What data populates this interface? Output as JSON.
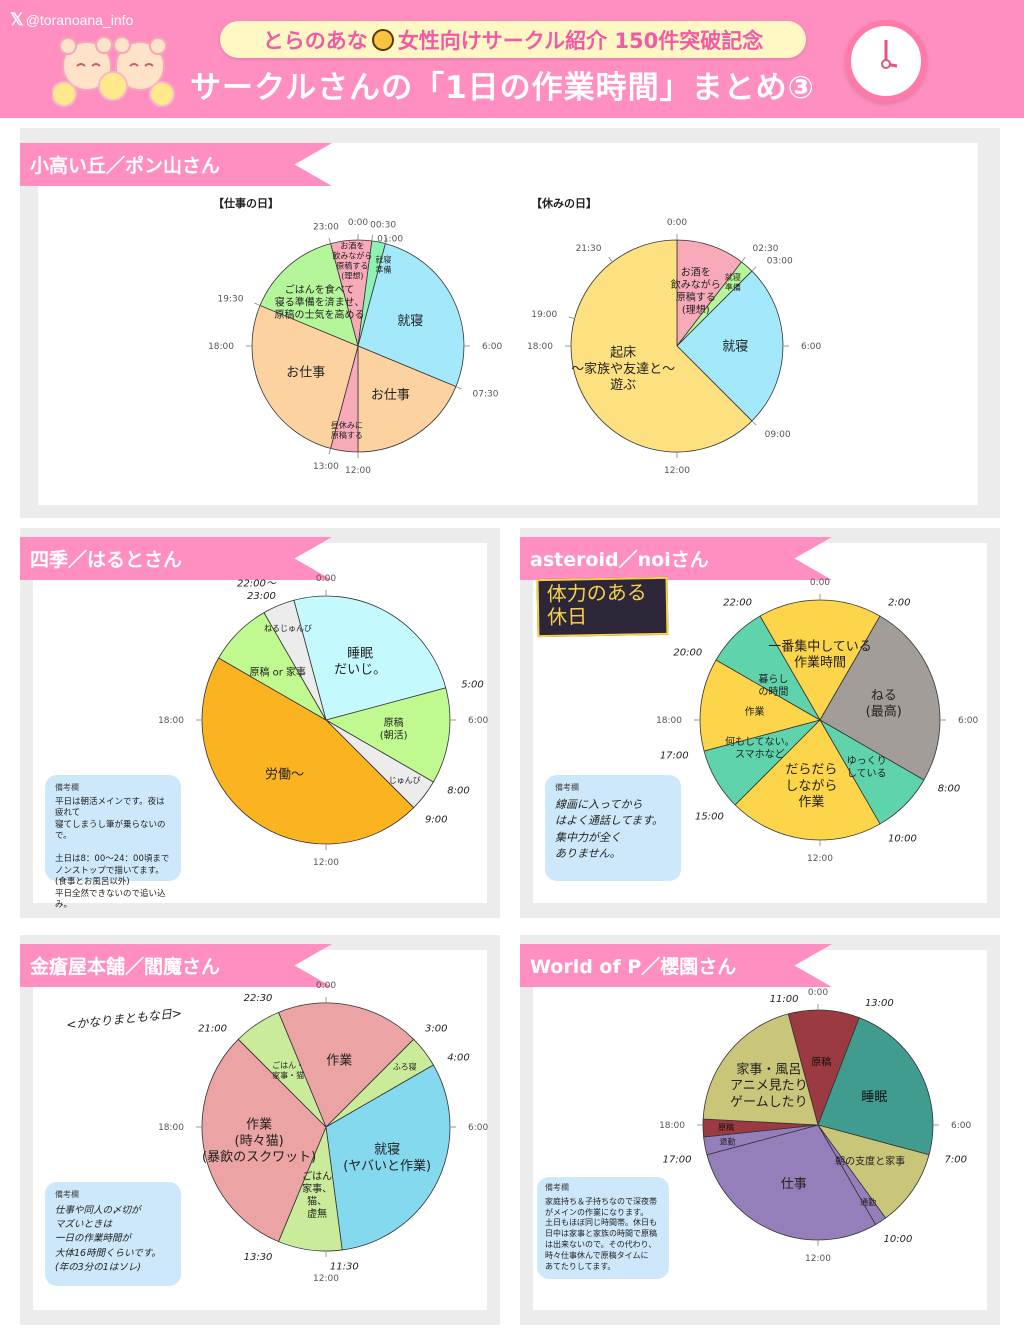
{
  "header": {
    "handle": "@toranoana_info",
    "banner_pre": "とらのあな",
    "banner_post": "女性向けサークル紹介 150件突破記念",
    "title": "サークルさんの「1日の作業時間」まとめ③"
  },
  "sections": [
    {
      "title": "小高い丘／ポン山さん",
      "subtitles": [
        "【仕事の日】",
        "【休みの日】"
      ]
    },
    {
      "title": "四季／はるとさん",
      "note_head": "備考欄",
      "note": "平日は朝活メインです。夜は疲れて\n寝てしまうし筆が乗らないので。\n\n土日は8：00〜24：00頃まで\nノンストップで描いてます。\n(食事とお風呂以外)\n平日全然できないので追い込み。"
    },
    {
      "title": "asteroid／noiさん",
      "badge": "体力のある\n休日",
      "note_head": "備考欄",
      "note": "線画に入ってから\nはよく通話してます。\n集中力が全く\nありません。"
    },
    {
      "title": "金瘡屋本舗／閻魔さん",
      "day_tag": "<かなりまともな日>",
      "note_head": "備考欄",
      "note": "仕事や同人の〆切が\nマズいときは\n一日の作業時間が\n大体16時間くらいです。\n(年の3分の1はソレ)"
    },
    {
      "title": "World of P／櫻園さん",
      "note_head": "備考欄",
      "note": "家庭持ち＆子持ちなので深夜帯\nがメインの作業になります。\n土日もほぼ同じ時間帯。休日も\n日中は家事と家族の時間で原稿\nは出来ないので。その代わり、\n時々仕事休んで原稿タイムに\nあてたりしてます。"
    }
  ],
  "chart_data": [
    {
      "type": "pie",
      "title": "【仕事の日】",
      "segments": [
        {
          "start": 23,
          "end": 0.5,
          "label": "お酒を\n飲みながら\n原稿する\n(理想)",
          "color": "#f9aab9"
        },
        {
          "start": 0.5,
          "end": 1,
          "label": "就寝\n準備",
          "color": "#8ef2b2"
        },
        {
          "start": 1,
          "end": 7.5,
          "label": "就寝",
          "color": "#a4e9fb"
        },
        {
          "start": 7.5,
          "end": 12,
          "label": "お仕事",
          "color": "#fcd3a0"
        },
        {
          "start": 12,
          "end": 13,
          "label": "昼休みに\n原稿する",
          "color": "#f9aab9"
        },
        {
          "start": 13,
          "end": 19.5,
          "label": "お仕事",
          "color": "#fcd3a0"
        },
        {
          "start": 19.5,
          "end": 23,
          "label": "ごはんを食べて\n寝る準備を済ませ、\n原稿の士気を高める",
          "color": "#b5f69a"
        }
      ],
      "ticks": [
        {
          "h": 0,
          "label": "0:00"
        },
        {
          "h": 0.5,
          "label": "00:30"
        },
        {
          "h": 1,
          "label": "01:00"
        },
        {
          "h": 6,
          "label": "6:00"
        },
        {
          "h": 7.5,
          "label": "07:30"
        },
        {
          "h": 12,
          "label": "12:00"
        },
        {
          "h": 13,
          "label": "13:00"
        },
        {
          "h": 18,
          "label": "18:00"
        },
        {
          "h": 19.5,
          "label": "19:30"
        },
        {
          "h": 23,
          "label": "23:00"
        }
      ]
    },
    {
      "type": "pie",
      "title": "【休みの日】",
      "segments": [
        {
          "start": 0,
          "end": 2.5,
          "label": "お酒を\n飲みながら\n原稿する\n(理想)",
          "color": "#f9aab9"
        },
        {
          "start": 2.5,
          "end": 3,
          "label": "就寝\n準備",
          "color": "#b5f69a"
        },
        {
          "start": 3,
          "end": 9,
          "label": "就寝",
          "color": "#a4e9fb"
        },
        {
          "start": 9,
          "end": 24,
          "label": "起床\n〜家族や友達と〜\n遊ぶ",
          "color": "#fde07f"
        }
      ],
      "ticks": [
        {
          "h": 0,
          "label": "0:00"
        },
        {
          "h": 2.5,
          "label": "02:30"
        },
        {
          "h": 3,
          "label": "03:00"
        },
        {
          "h": 6,
          "label": "6:00"
        },
        {
          "h": 9,
          "label": "09:00"
        },
        {
          "h": 12,
          "label": "12:00"
        },
        {
          "h": 18,
          "label": "18:00"
        },
        {
          "h": 19,
          "label": "19:00"
        },
        {
          "h": 21.5,
          "label": "21:30"
        }
      ]
    },
    {
      "type": "pie",
      "title": "四季／はるとさん",
      "segments": [
        {
          "start": 23,
          "end": 5,
          "label": "睡眠\nだいじ。",
          "color": "#c4f9fd"
        },
        {
          "start": 5,
          "end": 8,
          "label": "原稿\n(朝活)",
          "color": "#bff98f"
        },
        {
          "start": 8,
          "end": 9,
          "label": "じゅんび",
          "color": "#ececec"
        },
        {
          "start": 9,
          "end": 20,
          "label": "労働〜",
          "color": "#fbb320"
        },
        {
          "start": 20,
          "end": 22,
          "label": "原稿 or 家事",
          "color": "#bff98f"
        },
        {
          "start": 22,
          "end": 23,
          "label": "ねるじゅんび",
          "color": "#ececec"
        }
      ],
      "ticks": [
        {
          "h": 0,
          "label": "0:00"
        },
        {
          "h": 5,
          "label": "5:00",
          "hand": true
        },
        {
          "h": 6,
          "label": "6:00"
        },
        {
          "h": 8,
          "label": "8:00",
          "hand": true
        },
        {
          "h": 9,
          "label": "9:00",
          "hand": true
        },
        {
          "h": 12,
          "label": "12:00"
        },
        {
          "h": 18,
          "label": "18:00"
        },
        {
          "h": 22.6,
          "label": "22:00〜\n23:00",
          "hand": true
        }
      ]
    },
    {
      "type": "pie",
      "title": "asteroid／noiさん",
      "segments": [
        {
          "start": 22,
          "end": 2,
          "label": "一番集中している\n作業時間",
          "color": "#fdd54a"
        },
        {
          "start": 2,
          "end": 8,
          "label": "ねる\n(最高)",
          "color": "#a29d99"
        },
        {
          "start": 8,
          "end": 10,
          "label": "ゆっくり\nしている",
          "color": "#5fd4ac"
        },
        {
          "start": 10,
          "end": 15,
          "label": "だらだら\nしながら\n作業",
          "color": "#fdd54a"
        },
        {
          "start": 15,
          "end": 17,
          "label": "何もしてない。\nスマホなど",
          "color": "#5fd4ac"
        },
        {
          "start": 17,
          "end": 20,
          "label": "作業",
          "color": "#fdd54a"
        },
        {
          "start": 20,
          "end": 22,
          "label": "暮らし\nの時間",
          "color": "#5fd4ac"
        }
      ],
      "ticks": [
        {
          "h": 0,
          "label": "0:00"
        },
        {
          "h": 2,
          "label": "2:00",
          "hand": true
        },
        {
          "h": 6,
          "label": "6:00"
        },
        {
          "h": 8,
          "label": "8:00",
          "hand": true
        },
        {
          "h": 10,
          "label": "10:00",
          "hand": true
        },
        {
          "h": 12,
          "label": "12:00"
        },
        {
          "h": 15,
          "label": "15:00",
          "hand": true
        },
        {
          "h": 17,
          "label": "17:00",
          "hand": true
        },
        {
          "h": 18,
          "label": "18:00"
        },
        {
          "h": 20,
          "label": "20:00",
          "hand": true
        },
        {
          "h": 22,
          "label": "22:00",
          "hand": true
        }
      ]
    },
    {
      "type": "pie",
      "title": "金瘡屋本舗／閻魔さん",
      "segments": [
        {
          "start": 22.5,
          "end": 3,
          "label": "作業",
          "color": "#eba3a3"
        },
        {
          "start": 3,
          "end": 4,
          "label": "ふろ寝",
          "color": "#c9eb9a"
        },
        {
          "start": 4,
          "end": 11.5,
          "label": "就寝\n(ヤバいと作業)",
          "color": "#85d9ee"
        },
        {
          "start": 11.5,
          "end": 13.5,
          "label": "ごはん\n家事、\n猫、\n虚無",
          "color": "#c9eb9a"
        },
        {
          "start": 13.5,
          "end": 21,
          "label": "作業\n(時々猫)\n(暴飲のスクワット)",
          "color": "#eba3a3"
        },
        {
          "start": 21,
          "end": 22.5,
          "label": "ごはん・\n家事・猫",
          "color": "#c9eb9a"
        }
      ],
      "ticks": [
        {
          "h": 0,
          "label": "0:00"
        },
        {
          "h": 3,
          "label": "3:00",
          "hand": true
        },
        {
          "h": 4,
          "label": "4:00",
          "hand": true
        },
        {
          "h": 6,
          "label": "6:00"
        },
        {
          "h": 11.5,
          "label": "11:30",
          "hand": true
        },
        {
          "h": 12,
          "label": "12:00"
        },
        {
          "h": 13.5,
          "label": "13:30",
          "hand": true
        },
        {
          "h": 18,
          "label": "18:00"
        },
        {
          "h": 21,
          "label": "21:00",
          "hand": true
        },
        {
          "h": 22.5,
          "label": "22:30",
          "hand": true
        }
      ]
    },
    {
      "type": "pie",
      "title": "World of P／櫻園さん",
      "segments": [
        {
          "start": 23,
          "end": 1.4,
          "label": "原稿",
          "color": "#9b3a40"
        },
        {
          "start": 1.4,
          "end": 7,
          "label": "睡眠",
          "color": "#3f9c8f"
        },
        {
          "start": 7,
          "end": 9.6,
          "label": "朝の支度と家事",
          "color": "#c9c67a"
        },
        {
          "start": 9.6,
          "end": 10,
          "label": "通勤",
          "color": "#957fbb"
        },
        {
          "start": 10,
          "end": 17,
          "label": "仕事",
          "color": "#957fbb"
        },
        {
          "start": 17,
          "end": 17.6,
          "label": "退勤",
          "color": "#957fbb"
        },
        {
          "start": 17.6,
          "end": 18.2,
          "label": "原稿",
          "color": "#9b3a40"
        },
        {
          "start": 18.2,
          "end": 23,
          "label": "家事・風呂\nアニメ見たり\nゲームしたり",
          "color": "#c9c67a"
        }
      ],
      "ticks": [
        {
          "h": 0,
          "label": "0:00"
        },
        {
          "h": 23,
          "label": "11:00",
          "hand": true
        },
        {
          "h": 1.4,
          "label": "13:00",
          "hand": true
        },
        {
          "h": 6,
          "label": "6:00"
        },
        {
          "h": 7,
          "label": "7:00",
          "hand": true
        },
        {
          "h": 10,
          "label": "10:00",
          "hand": true
        },
        {
          "h": 12,
          "label": "12:00"
        },
        {
          "h": 17,
          "label": "17:00",
          "hand": true
        },
        {
          "h": 18,
          "label": "18:00"
        }
      ]
    }
  ]
}
